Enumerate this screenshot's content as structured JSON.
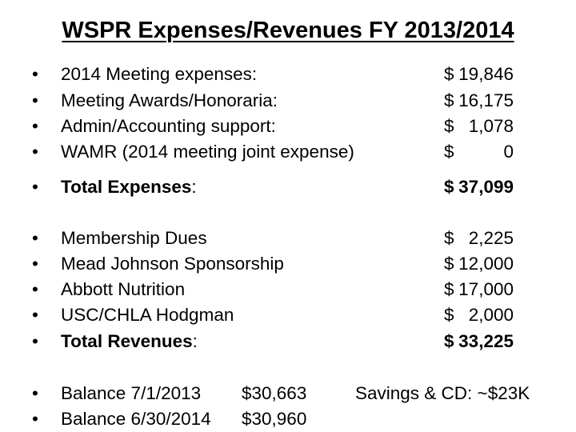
{
  "title": "WSPR Expenses/Revenues FY 2013/2014",
  "bullet_glyph": "•",
  "expenses": [
    {
      "label": "2014 Meeting expenses:",
      "currency": "$",
      "value": "19,846"
    },
    {
      "label": "Meeting Awards/Honoraria:",
      "currency": "$",
      "value": "16,175"
    },
    {
      "label": "Admin/Accounting support:",
      "currency": "$",
      "value": "1,078"
    },
    {
      "label": "WAMR (2014 meeting joint expense)",
      "currency": "$",
      "value": "0"
    }
  ],
  "total_expenses": {
    "label": "Total Expenses",
    "suffix": ":",
    "currency": "$",
    "value": "37,099"
  },
  "revenues": [
    {
      "label": "Membership Dues",
      "currency": "$",
      "value": "2,225"
    },
    {
      "label": "Mead Johnson Sponsorship",
      "currency": "$",
      "value": "12,000"
    },
    {
      "label": "Abbott Nutrition",
      "currency": "$",
      "value": "17,000"
    },
    {
      "label": "USC/CHLA Hodgman",
      "currency": "$",
      "value": "2,000"
    }
  ],
  "total_revenues": {
    "label": "Total Revenues",
    "suffix": ":",
    "currency": "$",
    "value": "33,225"
  },
  "balances": [
    {
      "label": "Balance 7/1/2013",
      "value": "$30,663"
    },
    {
      "label": "Balance 6/30/2014",
      "value": "$30,960"
    }
  ],
  "savings": "Savings & CD: ~$23K"
}
